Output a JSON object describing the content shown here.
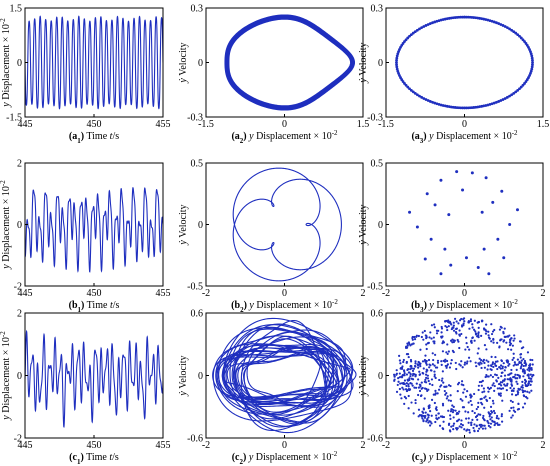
{
  "figure": {
    "panels": [
      {
        "id": "a1",
        "caption_id": "(a",
        "caption_sub": "1",
        "caption_close": ")",
        "caption_text": " Time ",
        "caption_var": "t",
        "caption_unit": "/s",
        "ylabel_var": "y",
        "ylabel_text": " Displacement × 10",
        "ylabel_exp": "-2"
      },
      {
        "id": "a2",
        "caption_id": "(a",
        "caption_sub": "2",
        "caption_close": ")",
        "caption_text": " ",
        "caption_var": "y",
        "caption_unit": " Displacement × 10",
        "caption_exp": "-2",
        "ylabel_var": "ẏ",
        "ylabel_text": " Velocity"
      },
      {
        "id": "a3",
        "caption_id": "(a",
        "caption_sub": "3",
        "caption_close": ")",
        "caption_text": " ",
        "caption_var": "y",
        "caption_unit": " Displacement × 10",
        "caption_exp": "-2",
        "ylabel_var": "ẏ",
        "ylabel_text": " Velocity"
      },
      {
        "id": "b1",
        "caption_id": "(b",
        "caption_sub": "1",
        "caption_close": ")",
        "caption_text": " Time ",
        "caption_var": "t",
        "caption_unit": "/s",
        "ylabel_var": "y",
        "ylabel_text": " Displacement × 10",
        "ylabel_exp": "-2"
      },
      {
        "id": "b2",
        "caption_id": "(b",
        "caption_sub": "2",
        "caption_close": ")",
        "caption_text": " ",
        "caption_var": "y",
        "caption_unit": " Displacement × 10",
        "caption_exp": "-2",
        "ylabel_var": "ẏ",
        "ylabel_text": " Velocity"
      },
      {
        "id": "b3",
        "caption_id": "(b",
        "caption_sub": "3",
        "caption_close": ")",
        "caption_text": " ",
        "caption_var": "y",
        "caption_unit": " Displacement × 10",
        "caption_exp": "-2",
        "ylabel_var": "ẏ",
        "ylabel_text": " Velocity"
      },
      {
        "id": "c1",
        "caption_id": "(c",
        "caption_sub": "1",
        "caption_close": ")",
        "caption_text": " Time ",
        "caption_var": "t",
        "caption_unit": "/s",
        "ylabel_var": "y",
        "ylabel_text": " Displacement × 10",
        "ylabel_exp": "-2"
      },
      {
        "id": "c2",
        "caption_id": "(c",
        "caption_sub": "2",
        "caption_close": ")",
        "caption_text": " ",
        "caption_var": "y",
        "caption_unit": " Displacement × 10",
        "caption_exp": "-2",
        "ylabel_var": "ẏ",
        "ylabel_text": " Velocity"
      },
      {
        "id": "c3",
        "caption_id": "(c",
        "caption_sub": "3",
        "caption_close": ")",
        "caption_text": " ",
        "caption_var": "y",
        "caption_unit": " Displacement × 10",
        "caption_exp": "-2",
        "ylabel_var": "ẏ",
        "ylabel_text": " Velocity"
      }
    ]
  },
  "colors": {
    "series": "#1f2fbf",
    "axis": "#000000"
  },
  "chart_data": [
    {
      "id": "a1",
      "type": "line",
      "xlim": [
        445,
        455
      ],
      "ylim": [
        -1.5,
        1.5
      ],
      "xticks": [
        "445",
        "450",
        "455"
      ],
      "yticks": [
        "-1.5",
        "0",
        "1.5"
      ],
      "series": [
        {
          "kind": "time",
          "periods_per_second": 2.5,
          "amplitude": 1.35
        }
      ]
    },
    {
      "id": "a2",
      "type": "line",
      "xlim": [
        -1.5,
        1.5
      ],
      "ylim": [
        -0.3,
        0.3
      ],
      "xticks": [
        "-1.5",
        "0",
        "1.5"
      ],
      "yticks": [
        "-0.3",
        "0",
        "0.3"
      ],
      "series": [
        {
          "kind": "phase",
          "rx": 1.2,
          "ry": 0.25,
          "band": 0.03
        }
      ]
    },
    {
      "id": "a3",
      "type": "scatter",
      "xlim": [
        -1.5,
        1.5
      ],
      "ylim": [
        -0.3,
        0.3
      ],
      "xticks": [
        "-1.5",
        "0",
        "1.5"
      ],
      "yticks": [
        "-0.3",
        "0",
        "0.3"
      ],
      "series": [
        {
          "kind": "poincare_ring",
          "rx": 1.2,
          "ry": 0.25,
          "points": 160
        }
      ]
    },
    {
      "id": "b1",
      "type": "line",
      "xlim": [
        445,
        455
      ],
      "ylim": [
        -2,
        2
      ],
      "xticks": [
        "445",
        "450",
        "455"
      ],
      "yticks": [
        "-2",
        "0",
        "2"
      ],
      "series": [
        {
          "kind": "time_quasi",
          "amplitude": 1.5
        }
      ]
    },
    {
      "id": "b2",
      "type": "line",
      "xlim": [
        -2,
        2
      ],
      "ylim": [
        -0.5,
        0.5
      ],
      "xticks": [
        "-2",
        "0",
        "2"
      ],
      "yticks": [
        "-0.5",
        "0",
        "0.5"
      ],
      "series": [
        {
          "kind": "phase_loops"
        }
      ]
    },
    {
      "id": "b3",
      "type": "scatter",
      "xlim": [
        -2,
        2
      ],
      "ylim": [
        -0.5,
        0.5
      ],
      "xticks": [
        "-2",
        "0",
        "2"
      ],
      "yticks": [
        "-0.5",
        "0",
        "0.5"
      ],
      "series": [
        {
          "kind": "poincare_points",
          "points": [
            [
              -0.2,
              0.43
            ],
            [
              0.2,
              0.42
            ],
            [
              -0.6,
              0.36
            ],
            [
              0.55,
              0.38
            ],
            [
              -0.95,
              0.25
            ],
            [
              0.95,
              0.27
            ],
            [
              -0.75,
              0.16
            ],
            [
              0.72,
              0.18
            ],
            [
              -0.4,
              0.08
            ],
            [
              0.45,
              0.1
            ],
            [
              -1.4,
              0.1
            ],
            [
              1.35,
              0.12
            ],
            [
              -1.2,
              -0.02
            ],
            [
              1.15,
              0.0
            ],
            [
              -0.85,
              -0.12
            ],
            [
              0.85,
              -0.12
            ],
            [
              -0.5,
              -0.2
            ],
            [
              0.5,
              -0.2
            ],
            [
              -1.0,
              -0.28
            ],
            [
              1.0,
              -0.27
            ],
            [
              -0.35,
              -0.33
            ],
            [
              0.35,
              -0.35
            ],
            [
              -0.6,
              -0.4
            ],
            [
              0.62,
              -0.4
            ],
            [
              0.05,
              -0.27
            ],
            [
              -0.05,
              0.28
            ]
          ]
        }
      ]
    },
    {
      "id": "c1",
      "type": "line",
      "xlim": [
        445,
        455
      ],
      "ylim": [
        -2,
        2
      ],
      "xticks": [
        "445",
        "450",
        "455"
      ],
      "yticks": [
        "-2",
        "0",
        "2"
      ],
      "series": [
        {
          "kind": "time_chaos",
          "amplitude": 1.6
        }
      ]
    },
    {
      "id": "c2",
      "type": "line",
      "xlim": [
        -2,
        2
      ],
      "ylim": [
        -0.6,
        0.6
      ],
      "xticks": [
        "-2",
        "0",
        "2"
      ],
      "yticks": [
        "-0.6",
        "0",
        "0.6"
      ],
      "series": [
        {
          "kind": "phase_chaos"
        }
      ]
    },
    {
      "id": "c3",
      "type": "scatter",
      "xlim": [
        -2,
        2
      ],
      "ylim": [
        -0.6,
        0.6
      ],
      "xticks": [
        "-2",
        "0",
        "2"
      ],
      "yticks": [
        "-0.6",
        "0",
        "0.6"
      ],
      "series": [
        {
          "kind": "poincare_chaos"
        }
      ]
    }
  ]
}
